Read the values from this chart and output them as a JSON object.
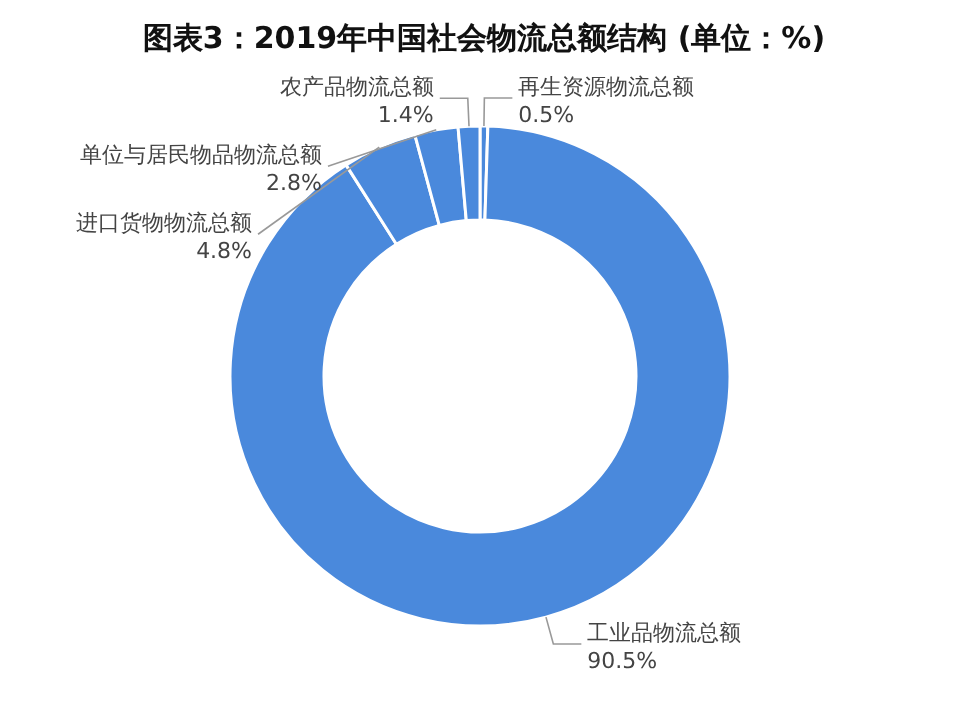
{
  "chart_data": {
    "type": "donut",
    "title": "图表3：2019年中国社会物流总额结构 (单位：%)",
    "categories": [
      "再生资源物流总额",
      "工业品物流总额",
      "进口货物物流总额",
      "单位与居民物品物流总额",
      "农产品物流总额"
    ],
    "values": [
      0.5,
      90.5,
      4.8,
      2.8,
      1.4
    ],
    "value_labels": [
      "0.5%",
      "90.5%",
      "4.8%",
      "2.8%",
      "1.4%"
    ],
    "colors": [
      "#4a89dc",
      "#4a89dc",
      "#4a89dc",
      "#4a89dc",
      "#4a89dc"
    ]
  }
}
